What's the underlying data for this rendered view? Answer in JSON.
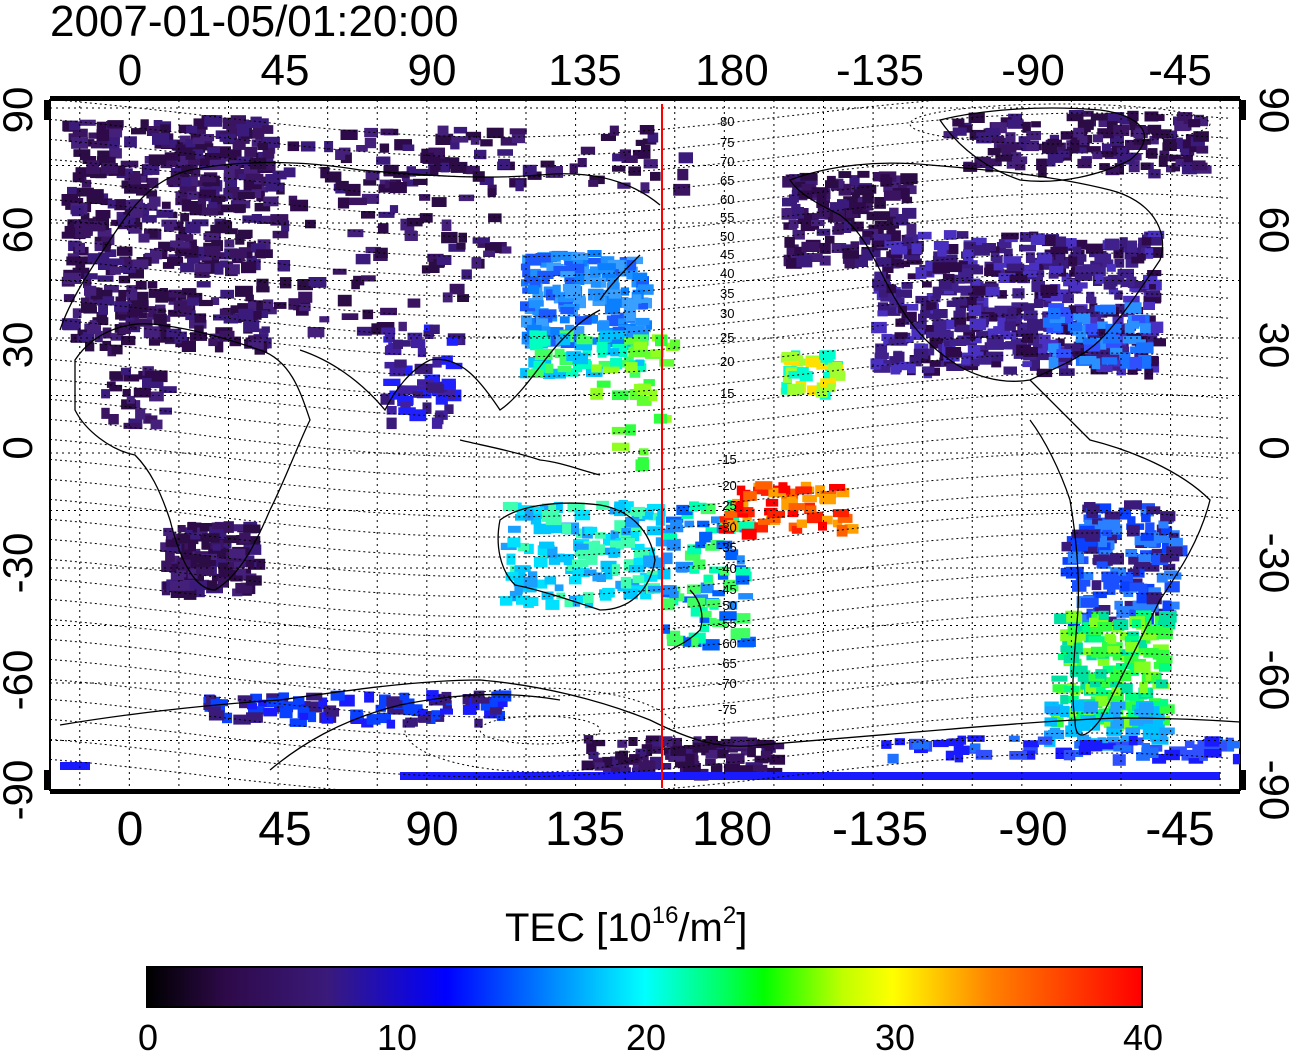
{
  "title": "2007-01-05/01:20:00",
  "map": {
    "projection": "equirectangular",
    "lon_ticks_top": [
      "0",
      "45",
      "90",
      "135",
      "180",
      "-135",
      "-90",
      "-45"
    ],
    "lon_ticks_bottom": [
      "0",
      "45",
      "90",
      "135",
      "180",
      "-135",
      "-90",
      "-45"
    ],
    "lat_ticks_left": [
      "90",
      "60",
      "30",
      "0",
      "-30",
      "-60",
      "-90"
    ],
    "lat_ticks_right": [
      "90",
      "60",
      "30",
      "0",
      "-30",
      "-60",
      "-90"
    ],
    "meridian_line_lon": 157,
    "meridian_line_color": "#ff0000",
    "contour_labels_north": [
      "80",
      "75",
      "70",
      "65",
      "60",
      "55",
      "50",
      "45",
      "40",
      "35",
      "30",
      "25",
      "20",
      "15"
    ],
    "contour_labels_south": [
      "-15",
      "-20",
      "-25",
      "-30",
      "-35",
      "-40",
      "-45",
      "-50",
      "-55",
      "-60",
      "-65",
      "-70",
      "-75"
    ]
  },
  "colorbar": {
    "title_main": "TEC  [10",
    "title_exp1": "16",
    "title_mid": "/m",
    "title_exp2": "2",
    "title_end": "]",
    "min": 0,
    "max": 40,
    "tick_labels": [
      "0",
      "10",
      "20",
      "30",
      "40"
    ],
    "colors": [
      "#000000",
      "#3a1a7a",
      "#0000ff",
      "#00ffff",
      "#00ff00",
      "#ffff00",
      "#ff0000"
    ]
  }
}
